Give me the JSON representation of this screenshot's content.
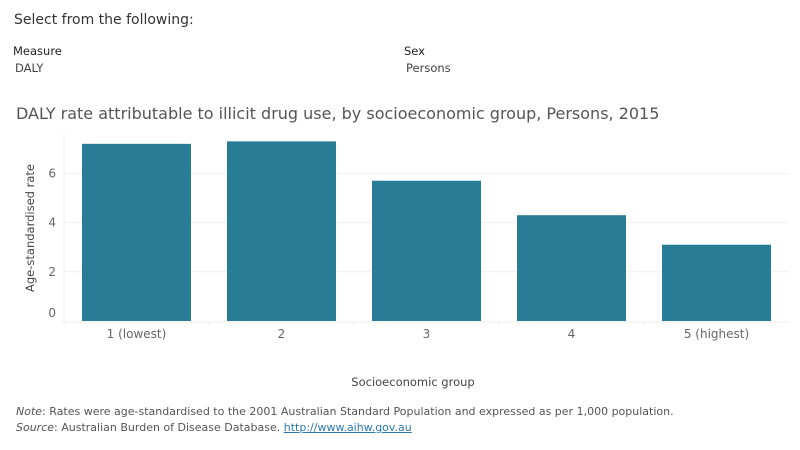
{
  "header": {
    "select_title": "Select from the following:"
  },
  "filters": [
    {
      "label": "Measure",
      "value": "DALY"
    },
    {
      "label": "Sex",
      "value": "Persons"
    }
  ],
  "footer": {
    "note_label": "Note",
    "note_text": ": Rates were age-standardised to the 2001 Australian Standard Population and expressed as per 1,000 population.",
    "source_label": "Source",
    "source_text": ": Australian Burden of Disease Database. ",
    "source_link": "http://www.aihw.gov.au"
  },
  "chart_data": {
    "type": "bar",
    "title": "DALY rate attributable to illicit drug use, by socioeconomic group, Persons, 2015",
    "xlabel": "Socioeconomic group",
    "ylabel": "Age-standardised rate",
    "categories": [
      "1 (lowest)",
      "2",
      "3",
      "4",
      "5 (highest)"
    ],
    "values": [
      7.2,
      7.3,
      5.7,
      4.3,
      3.1
    ],
    "ylim": [
      0,
      7.6
    ],
    "yticks": [
      0,
      2,
      4,
      6
    ],
    "grid": true,
    "bar_color": "#287c96"
  }
}
